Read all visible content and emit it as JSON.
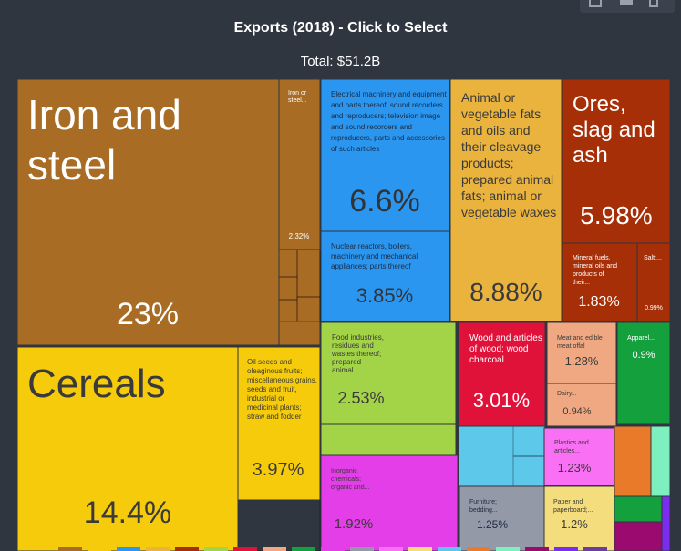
{
  "title": "Exports (2018) - Click to Select",
  "subtitle": "Total: $51.2B",
  "chart_data": {
    "type": "treemap",
    "title": "Exports (2018) - Click to Select",
    "subtitle": "Total: $51.2B",
    "tiles": [
      {
        "id": "iron-steel",
        "name": "Iron and steel",
        "value": "23%",
        "color": "#a86c25"
      },
      {
        "id": "iron-steel-sub",
        "name": "Iron or steel...",
        "value": "2.32%",
        "color": "#a86c25"
      },
      {
        "id": "cereals",
        "name": "Cereals",
        "value": "14.4%",
        "color": "#f5cb0c"
      },
      {
        "id": "oil-seeds",
        "name": "Oil seeds and oleaginous fruits; miscellaneous grains, seeds and fruit, industrial or medicinal plants; straw and fodder",
        "value": "3.97%",
        "color": "#f5cb0c"
      },
      {
        "id": "electrical",
        "name": "Electrical machinery and equipment and parts thereof; sound recorders and reproducers; television image and sound recorders and reproducers, parts and accessories of such articles",
        "value": "6.6%",
        "color": "#2a96f0"
      },
      {
        "id": "nuclear",
        "name": "Nuclear reactors, boilers, machinery and mechanical appliances; parts thereof",
        "value": "3.85%",
        "color": "#2a96f0"
      },
      {
        "id": "animal-fats",
        "name": "Animal or vegetable fats and oils and their cleavage products; prepared animal fats; animal or vegetable waxes",
        "value": "8.88%",
        "color": "#e9b33d"
      },
      {
        "id": "ores",
        "name": "Ores, slag and ash",
        "value": "5.98%",
        "color": "#a62f07"
      },
      {
        "id": "mineral-fuels",
        "name": "Mineral fuels, mineral oils and products of their...",
        "value": "1.83%",
        "color": "#a62f07"
      },
      {
        "id": "salt",
        "name": "Salt;...",
        "value": "0.99%",
        "color": "#a62f07"
      },
      {
        "id": "food",
        "name": "Food industries, residues and wastes thereof; prepared animal...",
        "value": "2.53%",
        "color": "#a3d447"
      },
      {
        "id": "wood",
        "name": "Wood and articles of wood; wood charcoal",
        "value": "3.01%",
        "color": "#e0123a"
      },
      {
        "id": "meat",
        "name": "Meat and edible meat offal",
        "value": "1.28%",
        "color": "#f0a883"
      },
      {
        "id": "dairy",
        "name": "Dairy...",
        "value": "0.94%",
        "color": "#f0a883"
      },
      {
        "id": "apparel",
        "name": "Apparel...",
        "value": "0.9%",
        "color": "#14a03c"
      },
      {
        "id": "inorganic",
        "name": "Inorganic chemicals; organic and...",
        "value": "1.92%",
        "color": "#e43ee8"
      },
      {
        "id": "plastics",
        "name": "Plastics and articles...",
        "value": "1.23%",
        "color": "#fa70f4"
      },
      {
        "id": "furniture",
        "name": "Furniture; bedding...",
        "value": "1.25%",
        "color": "#9499a8"
      },
      {
        "id": "paper",
        "name": "Paper and paperboard;...",
        "value": "1.2%",
        "color": "#f3dd7c"
      }
    ],
    "legend_swatches": [
      "#a86c25",
      "#f5cb0c",
      "#2a96f0",
      "#e9b33d",
      "#a62f07",
      "#a3d447",
      "#e0123a",
      "#f0a883",
      "#14a03c",
      "#e43ee8",
      "#9499a8",
      "#fa70f4",
      "#f3dd7c",
      "#5ec8ea",
      "#e87a2a",
      "#7ef0c0",
      "#9b0a6e",
      "#7b2cf0",
      "#6a3ea0"
    ]
  }
}
